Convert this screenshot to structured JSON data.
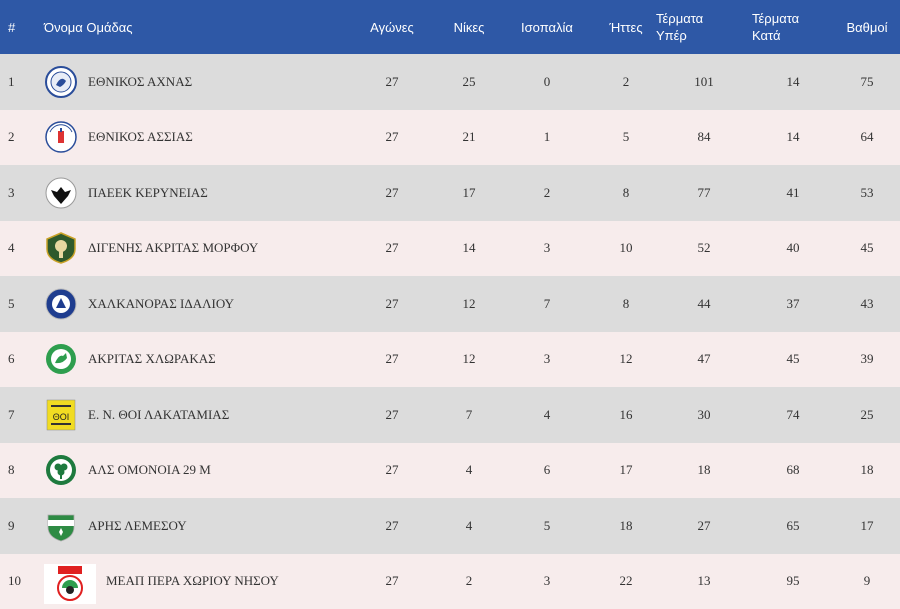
{
  "header": {
    "num": "#",
    "team": "Όνομα Ομάδας",
    "played": "Αγώνες",
    "wins": "Νίκες",
    "draws": "Ισοπαλία",
    "losses": "Ήττες",
    "goals_for_1": "Τέρματα",
    "goals_for_2": "Υπέρ",
    "goals_against_1": "Τέρματα",
    "goals_against_2": "Κατά",
    "points": "Βαθμοί"
  },
  "colors": {
    "header_bg": "#2e58a6",
    "row_odd": "#dcdcdc",
    "row_even": "#f7ecec"
  },
  "rows": [
    {
      "pos": "1",
      "team": "ΕΘΝΙΚΟΣ ΑΧΝΑΣ",
      "logo": "ethnikos-achnas-crest-icon",
      "played": "27",
      "wins": "25",
      "draws": "0",
      "losses": "2",
      "gf": "101",
      "ga": "14",
      "pts": "75"
    },
    {
      "pos": "2",
      "team": "ΕΘΝΙΚΟΣ ΑΣΣΙΑΣ",
      "logo": "ethnikos-assias-crest-icon",
      "played": "27",
      "wins": "21",
      "draws": "1",
      "losses": "5",
      "gf": "84",
      "ga": "14",
      "pts": "64"
    },
    {
      "pos": "3",
      "team": "ΠΑΕΕΚ ΚΕΡΥΝΕΙΑΣ",
      "logo": "paeek-eagle-crest-icon",
      "played": "27",
      "wins": "17",
      "draws": "2",
      "losses": "8",
      "gf": "77",
      "ga": "41",
      "pts": "53"
    },
    {
      "pos": "4",
      "team": "ΔΙΓΕΝΗΣ ΑΚΡΙΤΑΣ ΜΟΡΦΟΥ",
      "logo": "digenis-morfou-crest-icon",
      "played": "27",
      "wins": "14",
      "draws": "3",
      "losses": "10",
      "gf": "52",
      "ga": "40",
      "pts": "45"
    },
    {
      "pos": "5",
      "team": "ΧΑΛΚΑΝΟΡΑΣ ΙΔΑΛΙΟΥ",
      "logo": "chalkanoras-crest-icon",
      "played": "27",
      "wins": "12",
      "draws": "7",
      "losses": "8",
      "gf": "44",
      "ga": "37",
      "pts": "43"
    },
    {
      "pos": "6",
      "team": "ΑΚΡΙΤΑΣ ΧΛΩΡΑΚΑΣ",
      "logo": "akritas-chlorakas-crest-icon",
      "played": "27",
      "wins": "12",
      "draws": "3",
      "losses": "12",
      "gf": "47",
      "ga": "45",
      "pts": "39"
    },
    {
      "pos": "7",
      "team": "Ε. Ν. ΘΟΙ ΛΑΚΑΤΑΜΙΑΣ",
      "logo": "thoi-lakatamias-crest-icon",
      "played": "27",
      "wins": "7",
      "draws": "4",
      "losses": "16",
      "gf": "30",
      "ga": "74",
      "pts": "25"
    },
    {
      "pos": "8",
      "team": "ΑΛΣ ΟΜΟΝΟΙΑ 29 Μ",
      "logo": "omonoia-29m-crest-icon",
      "played": "27",
      "wins": "4",
      "draws": "6",
      "losses": "17",
      "gf": "18",
      "ga": "68",
      "pts": "18"
    },
    {
      "pos": "9",
      "team": "ΑΡΗΣ ΛΕΜΕΣΟΥ",
      "logo": "aris-limassol-crest-icon",
      "played": "27",
      "wins": "4",
      "draws": "5",
      "losses": "18",
      "gf": "27",
      "ga": "65",
      "pts": "17"
    },
    {
      "pos": "10",
      "team": "ΜΕΑΠ ΠΕΡΑ ΧΩΡΙΟΥ ΝΗΣΟΥ",
      "logo": "meap-crest-icon",
      "played": "27",
      "wins": "2",
      "draws": "3",
      "losses": "22",
      "gf": "13",
      "ga": "95",
      "pts": "9"
    }
  ]
}
